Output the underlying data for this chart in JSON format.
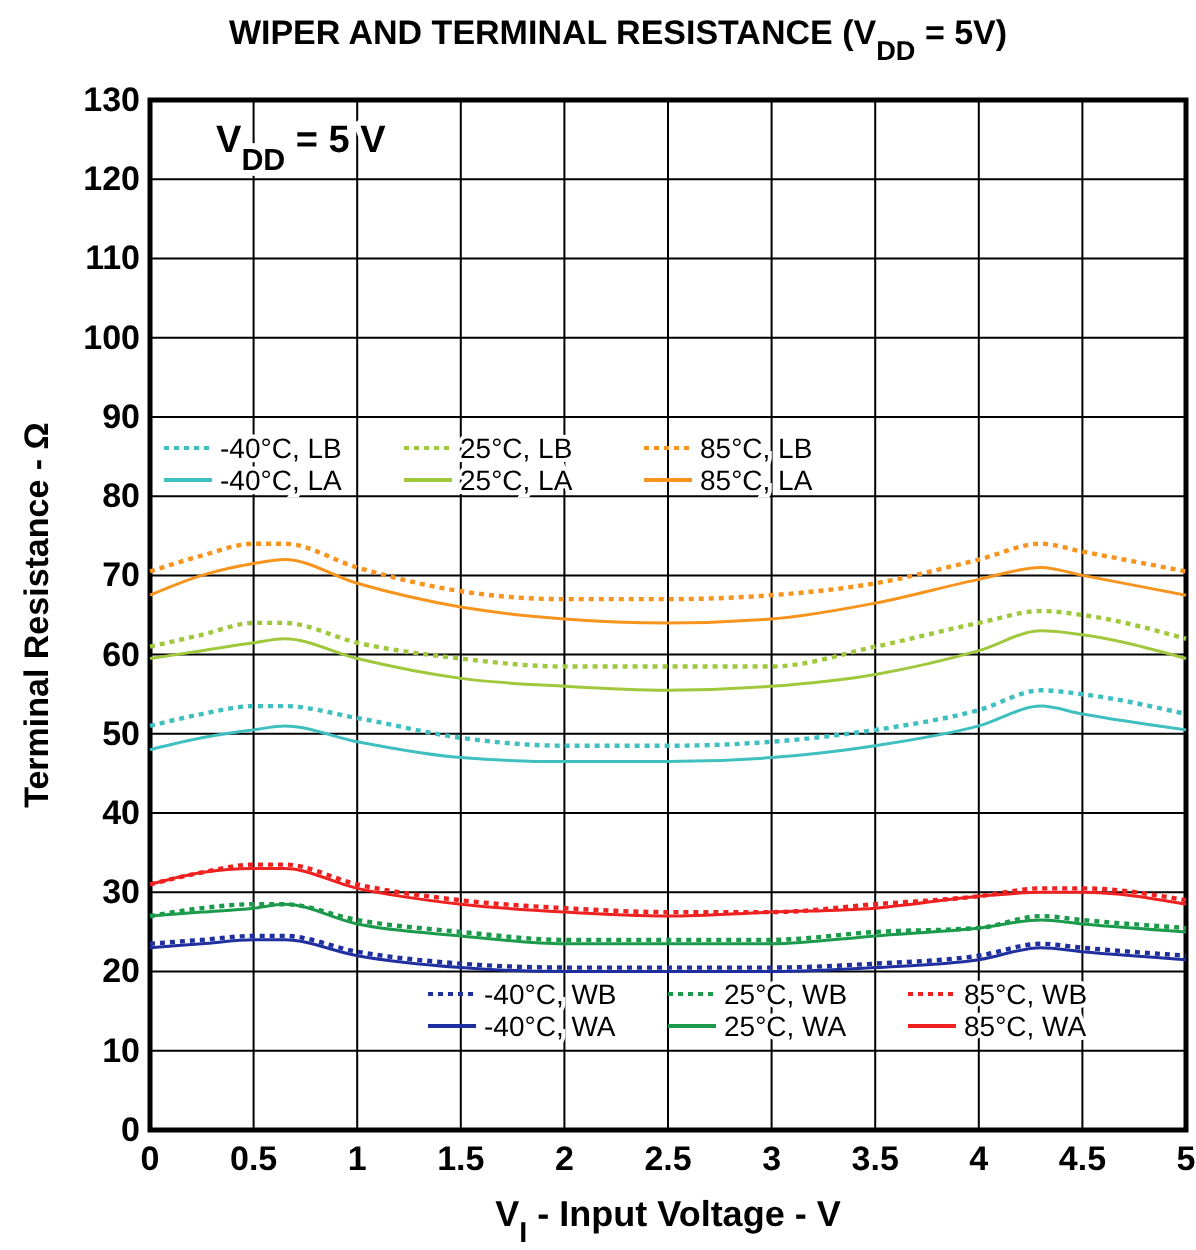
{
  "chart_data": {
    "type": "line",
    "title": "WIPER AND TERMINAL RESISTANCE (V$_{DD}$ = 5V)",
    "xlabel": "V$_{I}$ - Input Voltage - V",
    "ylabel": "Terminal Resistance - Ω",
    "annotations": [
      "V$_{DD}$ = 5 V"
    ],
    "x": [
      0,
      0.25,
      0.5,
      0.65,
      1,
      1.5,
      2,
      2.5,
      3,
      3.5,
      4,
      4.3,
      4.5,
      5
    ],
    "xlim": [
      0,
      5
    ],
    "xticks": [
      0,
      0.5,
      1,
      1.5,
      2,
      2.5,
      3,
      3.5,
      4,
      4.5,
      5
    ],
    "ylim": [
      0,
      130
    ],
    "yticks": [
      0,
      10,
      20,
      30,
      40,
      50,
      60,
      70,
      80,
      90,
      100,
      110,
      120,
      130
    ],
    "grid": true,
    "legend": "left",
    "marker": "none",
    "series": [
      {
        "name": "-40°C, LB",
        "color": "#3fbfbf",
        "line_style": "dotted",
        "values": [
          51,
          52.5,
          53.5,
          53.5,
          52,
          49.5,
          48.5,
          48.5,
          49,
          50.5,
          53,
          55.5,
          55,
          52.5
        ]
      },
      {
        "name": "-40°C, LA",
        "color": "#3fbfbf",
        "line_style": "solid",
        "values": [
          48,
          49.5,
          50.5,
          51,
          49,
          47,
          46.5,
          46.5,
          47,
          48.5,
          51,
          53.5,
          52.5,
          50.5
        ]
      },
      {
        "name": "25°C, LB",
        "color": "#a0c83c",
        "line_style": "dotted",
        "values": [
          61,
          62.5,
          64,
          64,
          61.5,
          59.5,
          58.5,
          58.5,
          58.5,
          61,
          64,
          65.5,
          65,
          62
        ]
      },
      {
        "name": "25°C, LA",
        "color": "#a0c83c",
        "line_style": "solid",
        "values": [
          59.5,
          60.5,
          61.5,
          62,
          59.5,
          57,
          56,
          55.5,
          56,
          57.5,
          60.5,
          63,
          62.5,
          59.5
        ]
      },
      {
        "name": "85°C, LB",
        "color": "#f7941d",
        "line_style": "dotted",
        "values": [
          70.5,
          72.5,
          74,
          74,
          71,
          68,
          67,
          67,
          67.5,
          69,
          72,
          74,
          73,
          70.5
        ]
      },
      {
        "name": "85°C, LA",
        "color": "#f7941d",
        "line_style": "solid",
        "values": [
          67.5,
          70,
          71.5,
          72,
          69,
          66,
          64.5,
          64,
          64.5,
          66.5,
          69.5,
          71,
          70,
          67.5
        ]
      },
      {
        "name": "-40°C, WB",
        "color": "#1f2f9f",
        "line_style": "dotted",
        "values": [
          23.5,
          24,
          24.5,
          24.5,
          22.5,
          21,
          20.5,
          20.5,
          20.5,
          21,
          22,
          23.5,
          23,
          22
        ]
      },
      {
        "name": "-40°C, WA",
        "color": "#1f2f9f",
        "line_style": "solid",
        "values": [
          23,
          23.5,
          24,
          24,
          22,
          20.5,
          20,
          20,
          20,
          20.5,
          21.5,
          23,
          22.5,
          21.5
        ]
      },
      {
        "name": "25°C, WB",
        "color": "#1a9a4a",
        "line_style": "dotted",
        "values": [
          27,
          28,
          28.5,
          28.5,
          26.5,
          25,
          24,
          24,
          24,
          25,
          25.5,
          27,
          26.5,
          25.5
        ]
      },
      {
        "name": "25°C, WA",
        "color": "#1a9a4a",
        "line_style": "solid",
        "values": [
          27,
          27.5,
          28,
          28.5,
          26,
          24.5,
          23.5,
          23.5,
          23.5,
          24.5,
          25.5,
          26.5,
          26,
          25
        ]
      },
      {
        "name": "85°C, WB",
        "color": "#ee2020",
        "line_style": "dotted",
        "values": [
          31,
          32.5,
          33.5,
          33.5,
          31,
          29,
          28,
          27.5,
          27.5,
          28.5,
          29.5,
          30.5,
          30.5,
          29
        ]
      },
      {
        "name": "85°C, WA",
        "color": "#ee2020",
        "line_style": "solid",
        "values": [
          31,
          32.5,
          33,
          33,
          30.5,
          28.5,
          27.5,
          27,
          27.5,
          28,
          29.5,
          30,
          30,
          28.5
        ]
      }
    ]
  }
}
